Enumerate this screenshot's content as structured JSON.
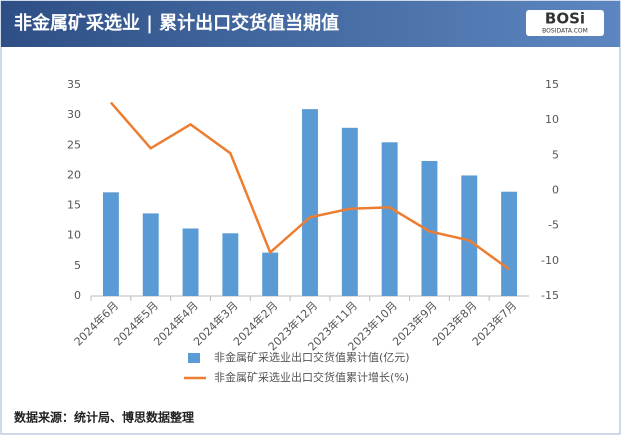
{
  "header": {
    "title": "非金属矿采选业 | 累计出口交货值当期值",
    "logo": "BOSi",
    "logo_sub": "BOSIDATA.COM"
  },
  "chart_data": {
    "type": "bar",
    "categories": [
      "2024年6月",
      "2024年5月",
      "2024年4月",
      "2024年3月",
      "2024年2月",
      "2023年12月",
      "2023年11月",
      "2023年10月",
      "2023年9月",
      "2023年8月",
      "2023年7月"
    ],
    "series": [
      {
        "name": "非金属矿采选业出口交货值累计值(亿元)",
        "type": "bar",
        "color": "#5b9bd5",
        "values": [
          17.2,
          13.7,
          11.2,
          10.4,
          7.2,
          31,
          27.9,
          25.5,
          22.4,
          20,
          17.3
        ]
      },
      {
        "name": "非金属矿采选业出口交货值累计增长(%)",
        "type": "line",
        "axis": "y2",
        "color": "#ed7d31",
        "values": [
          12.5,
          6,
          9.4,
          5.3,
          -8.8,
          -3.8,
          -2.6,
          -2.4,
          -5.8,
          -7.1,
          -11.2
        ]
      }
    ],
    "ylim": [
      0,
      35
    ],
    "yticks": [
      0,
      5,
      10,
      15,
      20,
      25,
      30,
      35
    ],
    "y2lim": [
      -15,
      15
    ],
    "y2ticks": [
      -15,
      -10,
      -5,
      0,
      5,
      10,
      15
    ],
    "grid": false
  },
  "footer": "数据来源：统计局、博思数据整理"
}
